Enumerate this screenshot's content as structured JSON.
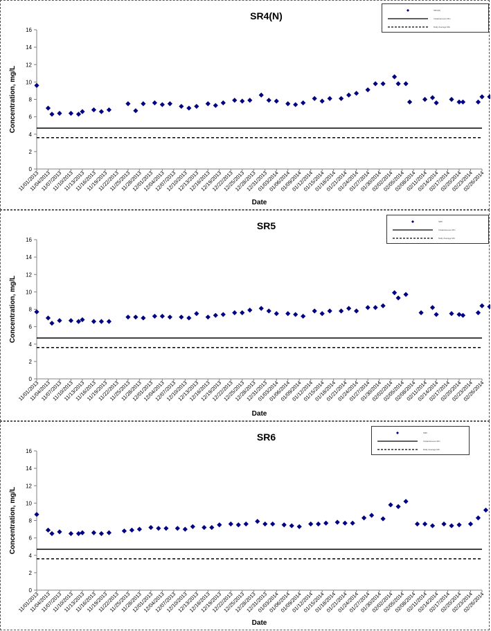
{
  "colors": {
    "marker": "#000080",
    "line": "#000000",
    "axis": "#808080"
  },
  "categories": [
    "11/01/2013",
    "11/04/2013",
    "11/07/2013",
    "11/10/2013",
    "11/13/2013",
    "11/16/2013",
    "11/19/2013",
    "11/22/2013",
    "11/25/2013",
    "11/28/2013",
    "12/01/2013",
    "12/04/2013",
    "12/07/2013",
    "12/10/2013",
    "12/13/2013",
    "12/16/2013",
    "12/19/2013",
    "12/22/2013",
    "12/25/2013",
    "12/28/2013",
    "12/31/2013",
    "01/03/2014",
    "01/06/2014",
    "01/09/2014",
    "01/12/2014",
    "01/15/2014",
    "01/18/2014",
    "01/21/2014",
    "01/24/2014",
    "01/27/2014",
    "01/30/2014",
    "02/02/2014",
    "02/05/2014",
    "02/08/2014",
    "02/11/2014",
    "02/14/2014",
    "02/17/2014",
    "02/20/2014",
    "02/23/2014",
    "02/26/2014"
  ],
  "chart_data": [
    {
      "type": "scatter",
      "title": "SR4(N)",
      "xlabel": "Date",
      "ylabel": "Concentration, mg/L",
      "ylim": [
        0,
        16
      ],
      "yticks": [
        0,
        2,
        4,
        6,
        8,
        10,
        12,
        14,
        16
      ],
      "grid": false,
      "legend_position": "top-right",
      "legend": [
        "SR4(N)",
        "Instantaneous Min",
        "Daily Average Min"
      ],
      "series": [
        {
          "name": "SR4(N)",
          "x": [
            "11/01/2013",
            "11/04/2013",
            "11/05/2013",
            "11/07/2013",
            "11/10/2013",
            "11/12/2013",
            "11/13/2013",
            "11/16/2013",
            "11/18/2013",
            "11/20/2013",
            "11/25/2013",
            "11/27/2013",
            "11/29/2013",
            "12/02/2013",
            "12/04/2013",
            "12/06/2013",
            "12/09/2013",
            "12/11/2013",
            "12/13/2013",
            "12/16/2013",
            "12/18/2013",
            "12/20/2013",
            "12/23/2013",
            "12/25/2013",
            "12/27/2013",
            "12/30/2013",
            "01/01/2014",
            "01/03/2014",
            "01/06/2014",
            "01/08/2014",
            "01/10/2014",
            "01/13/2014",
            "01/15/2014",
            "01/17/2014",
            "01/20/2014",
            "01/22/2014",
            "01/24/2014",
            "01/27/2014",
            "01/29/2014",
            "01/31/2014",
            "02/03/2014",
            "02/04/2014",
            "02/06/2014",
            "02/07/2014",
            "02/11/2014",
            "02/13/2014",
            "02/14/2014",
            "02/18/2014",
            "02/20/2014",
            "02/21/2014",
            "02/25/2014",
            "02/26/2014",
            "02/28/2014"
          ],
          "y": [
            9.6,
            7.0,
            6.3,
            6.4,
            6.4,
            6.3,
            6.6,
            6.8,
            6.6,
            6.8,
            7.5,
            6.7,
            7.5,
            7.6,
            7.4,
            7.5,
            7.2,
            7.0,
            7.2,
            7.5,
            7.3,
            7.6,
            7.9,
            7.8,
            7.9,
            8.5,
            7.9,
            7.8,
            7.5,
            7.4,
            7.6,
            8.1,
            7.8,
            8.1,
            8.1,
            8.5,
            8.7,
            9.1,
            9.8,
            9.8,
            10.6,
            9.8,
            9.8,
            7.7,
            8.0,
            8.2,
            7.6,
            8.0,
            7.7,
            7.7,
            7.7,
            8.3,
            8.3
          ]
        },
        {
          "name": "Instantaneous Min",
          "line": "solid",
          "value": 4.7
        },
        {
          "name": "Daily Average Min",
          "line": "dashed",
          "value": 3.6
        }
      ]
    },
    {
      "type": "scatter",
      "title": "SR5",
      "xlabel": "Date",
      "ylabel": "Concentration, mg/L",
      "ylim": [
        0,
        16
      ],
      "yticks": [
        0,
        2,
        4,
        6,
        8,
        10,
        12,
        14,
        16
      ],
      "grid": false,
      "legend_position": "top-right",
      "legend": [
        "SR5",
        "Instantaneous Min",
        "Daily Average Min"
      ],
      "series": [
        {
          "name": "SR5",
          "x": [
            "11/01/2013",
            "11/04/2013",
            "11/05/2013",
            "11/07/2013",
            "11/10/2013",
            "11/12/2013",
            "11/13/2013",
            "11/16/2013",
            "11/18/2013",
            "11/20/2013",
            "11/25/2013",
            "11/27/2013",
            "11/29/2013",
            "12/02/2013",
            "12/04/2013",
            "12/06/2013",
            "12/09/2013",
            "12/11/2013",
            "12/13/2013",
            "12/16/2013",
            "12/18/2013",
            "12/20/2013",
            "12/23/2013",
            "12/25/2013",
            "12/27/2013",
            "12/30/2013",
            "01/01/2014",
            "01/03/2014",
            "01/06/2014",
            "01/08/2014",
            "01/10/2014",
            "01/13/2014",
            "01/15/2014",
            "01/17/2014",
            "01/20/2014",
            "01/22/2014",
            "01/24/2014",
            "01/27/2014",
            "01/29/2014",
            "01/31/2014",
            "02/03/2014",
            "02/04/2014",
            "02/06/2014",
            "02/10/2014",
            "02/13/2014",
            "02/14/2014",
            "02/18/2014",
            "02/20/2014",
            "02/21/2014",
            "02/25/2014",
            "02/26/2014",
            "02/28/2014"
          ],
          "y": [
            7.7,
            7.0,
            6.4,
            6.7,
            6.7,
            6.6,
            6.8,
            6.6,
            6.6,
            6.6,
            7.1,
            7.1,
            7.0,
            7.2,
            7.2,
            7.1,
            7.1,
            7.0,
            7.5,
            7.1,
            7.3,
            7.4,
            7.6,
            7.6,
            7.9,
            8.1,
            7.8,
            7.5,
            7.5,
            7.4,
            7.2,
            7.8,
            7.5,
            7.8,
            7.8,
            8.1,
            7.8,
            8.2,
            8.2,
            8.4,
            9.9,
            9.3,
            9.7,
            7.6,
            8.2,
            7.4,
            7.5,
            7.4,
            7.3,
            7.6,
            8.4,
            8.3
          ]
        },
        {
          "name": "Instantaneous Min",
          "line": "solid",
          "value": 4.7
        },
        {
          "name": "Daily Average Min",
          "line": "dashed",
          "value": 3.6
        }
      ]
    },
    {
      "type": "scatter",
      "title": "SR6",
      "xlabel": "Date",
      "ylabel": "Concentration, mg/L",
      "ylim": [
        0,
        16
      ],
      "yticks": [
        0,
        2,
        4,
        6,
        8,
        10,
        12,
        14,
        16
      ],
      "grid": false,
      "legend_position": "top-right",
      "legend": [
        "SR6",
        "Instantaneous Min",
        "Daily Average Min"
      ],
      "series": [
        {
          "name": "SR6",
          "x": [
            "11/01/2013",
            "11/04/2013",
            "11/05/2013",
            "11/07/2013",
            "11/10/2013",
            "11/12/2013",
            "11/13/2013",
            "11/16/2013",
            "11/18/2013",
            "11/20/2013",
            "11/24/2013",
            "11/26/2013",
            "11/28/2013",
            "12/01/2013",
            "12/03/2013",
            "12/05/2013",
            "12/08/2013",
            "12/10/2013",
            "12/12/2013",
            "12/15/2013",
            "12/17/2013",
            "12/19/2013",
            "12/22/2013",
            "12/24/2013",
            "12/26/2013",
            "12/29/2013",
            "12/31/2013",
            "01/02/2014",
            "01/05/2014",
            "01/07/2014",
            "01/09/2014",
            "01/12/2014",
            "01/14/2014",
            "01/16/2014",
            "01/19/2014",
            "01/21/2014",
            "01/23/2014",
            "01/26/2014",
            "01/28/2014",
            "01/31/2014",
            "02/02/2014",
            "02/04/2014",
            "02/06/2014",
            "02/09/2014",
            "02/11/2014",
            "02/13/2014",
            "02/16/2014",
            "02/18/2014",
            "02/20/2014",
            "02/23/2014",
            "02/25/2014",
            "02/27/2014"
          ],
          "y": [
            8.7,
            6.9,
            6.5,
            6.7,
            6.5,
            6.5,
            6.6,
            6.6,
            6.5,
            6.6,
            6.8,
            6.9,
            7.0,
            7.2,
            7.1,
            7.1,
            7.1,
            7.0,
            7.3,
            7.2,
            7.2,
            7.5,
            7.6,
            7.5,
            7.6,
            7.9,
            7.6,
            7.6,
            7.5,
            7.4,
            7.3,
            7.6,
            7.6,
            7.7,
            7.8,
            7.7,
            7.7,
            8.3,
            8.6,
            8.2,
            9.8,
            9.6,
            10.2,
            7.6,
            7.6,
            7.4,
            7.6,
            7.4,
            7.5,
            7.6,
            8.3,
            9.2
          ]
        },
        {
          "name": "Instantaneous Min",
          "line": "solid",
          "value": 4.7
        },
        {
          "name": "Daily Average Min",
          "line": "dashed",
          "value": 3.6
        }
      ]
    }
  ]
}
